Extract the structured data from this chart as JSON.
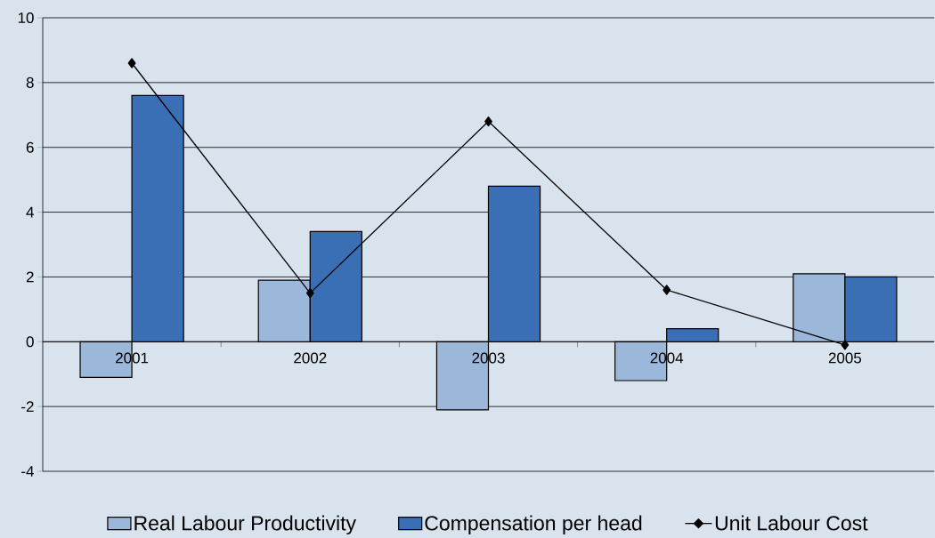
{
  "chart_data": {
    "type": "bar",
    "categories": [
      "2001",
      "2002",
      "2003",
      "2004",
      "2005"
    ],
    "series": [
      {
        "name": "Real Labour Productivity",
        "color": "#9bb7d9",
        "values": [
          -1.1,
          1.9,
          -2.1,
          -1.2,
          2.1
        ]
      },
      {
        "name": "Compensation per head",
        "color": "#3a6eb5",
        "values": [
          7.6,
          3.4,
          4.8,
          0.4,
          2.0
        ]
      },
      {
        "name": "Unit Labour Cost",
        "type": "line",
        "color": "#000000",
        "marker": "diamond",
        "values": [
          8.6,
          1.5,
          6.8,
          1.6,
          -0.1
        ]
      }
    ],
    "ylim": [
      -4,
      10
    ],
    "yticks": [
      -4,
      -2,
      0,
      2,
      4,
      6,
      8,
      10
    ],
    "grid": "y",
    "legend": "bottom"
  }
}
